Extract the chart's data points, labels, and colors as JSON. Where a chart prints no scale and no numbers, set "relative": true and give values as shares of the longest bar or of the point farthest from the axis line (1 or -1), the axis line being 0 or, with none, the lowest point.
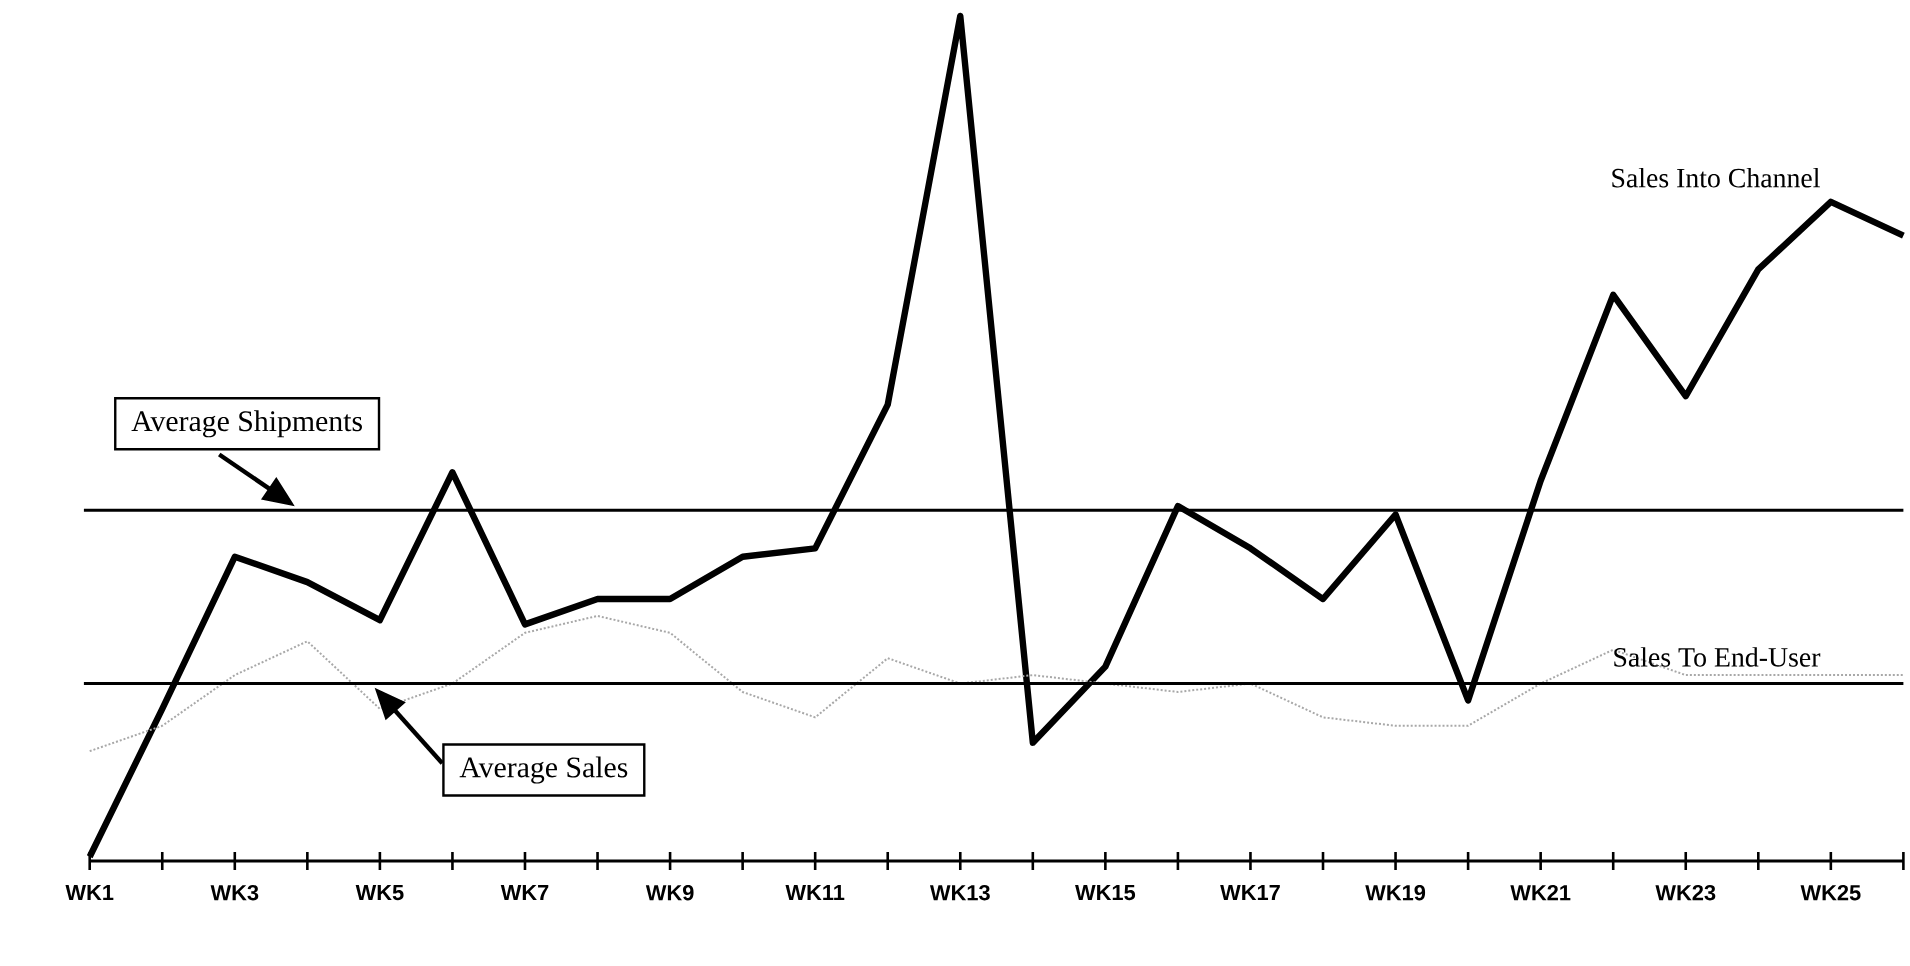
{
  "chart_data": {
    "type": "line",
    "relative": true,
    "tick_labels": "x",
    "marker": "none",
    "line_style": "solid",
    "categories": [
      "WK1",
      null,
      "WK3",
      null,
      "WK5",
      null,
      "WK7",
      null,
      "WK9",
      null,
      "WK11",
      null,
      "WK13",
      null,
      "WK15",
      null,
      "WK17",
      null,
      "WK19",
      null,
      "WK21",
      null,
      "WK23",
      null,
      "WK25",
      null
    ],
    "series": [
      {
        "name": "Sales Into Channel",
        "color": "#000000",
        "values": [
          0.005,
          0.18,
          0.36,
          0.33,
          0.285,
          0.46,
          0.28,
          0.31,
          0.31,
          0.36,
          0.37,
          0.54,
          1,
          0.14,
          0.23,
          0.42,
          0.37,
          0.31,
          0.41,
          0.19,
          0.45,
          0.67,
          0.55,
          0.7,
          0.78,
          0.74
        ]
      },
      {
        "name": "Sales To End-User",
        "color": "#a8a8a8",
        "line_style": "dotted",
        "values": [
          0.13,
          0.16,
          0.22,
          0.26,
          0.18,
          0.21,
          0.27,
          0.29,
          0.27,
          0.2,
          0.17,
          0.24,
          0.21,
          0.22,
          0.21,
          0.2,
          0.21,
          0.17,
          0.16,
          0.16,
          0.21,
          0.25,
          0.22,
          0.22,
          0.22,
          0.22
        ]
      }
    ],
    "ref_lines": [
      {
        "axis": "y",
        "value": 0.415,
        "label": "Average Shipments",
        "color": "#000000"
      },
      {
        "axis": "y",
        "value": 0.21,
        "label": "Average Sales",
        "color": "#000000"
      }
    ]
  }
}
